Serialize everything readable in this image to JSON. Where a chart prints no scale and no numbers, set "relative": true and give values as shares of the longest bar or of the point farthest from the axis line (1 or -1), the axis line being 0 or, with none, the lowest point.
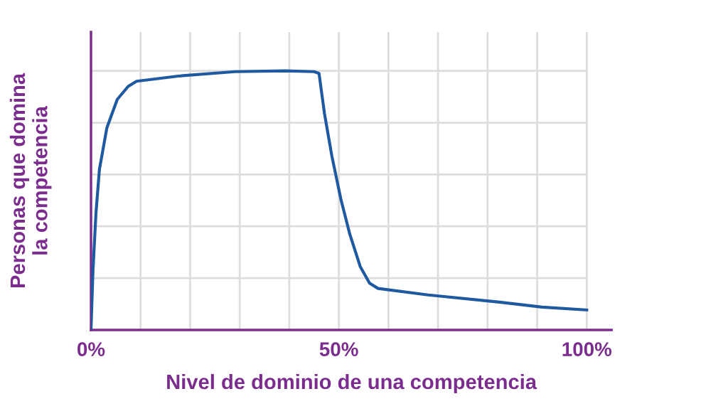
{
  "chart_data": {
    "type": "line",
    "relative": true,
    "xlabel": "Nivel de dominio de una competencia",
    "ylabel": "Personas que domina\nla competencia",
    "x": [
      0,
      0.4,
      1.0,
      1.7,
      3.2,
      5.3,
      7.5,
      9.2,
      17.6,
      29.1,
      39.2,
      45,
      46,
      47.1,
      48.6,
      50.4,
      52.2,
      54.3,
      56.2,
      57.9,
      68,
      82.4,
      91,
      100
    ],
    "series": [
      {
        "color": "#1f5aa0",
        "values": [
          0,
          0.23,
          0.45,
          0.62,
          0.78,
          0.89,
          0.94,
          0.96,
          0.98,
          0.997,
          1.0,
          0.997,
          0.99,
          0.835,
          0.67,
          0.505,
          0.37,
          0.245,
          0.18,
          0.16,
          0.135,
          0.107,
          0.088,
          0.077
        ]
      }
    ],
    "xlim": [
      0,
      105
    ],
    "xticks": [
      {
        "value": 0,
        "label": "0%"
      },
      {
        "value": 10,
        "label": null
      },
      {
        "value": 20,
        "label": null
      },
      {
        "value": 30,
        "label": null
      },
      {
        "value": 40,
        "label": null
      },
      {
        "value": 50,
        "label": "50%"
      },
      {
        "value": 60,
        "label": null
      },
      {
        "value": 70,
        "label": null
      },
      {
        "value": 80,
        "label": null
      },
      {
        "value": 90,
        "label": null
      },
      {
        "value": 100,
        "label": "100%"
      }
    ],
    "grid": true,
    "marker": "none",
    "line_style": "solid"
  }
}
